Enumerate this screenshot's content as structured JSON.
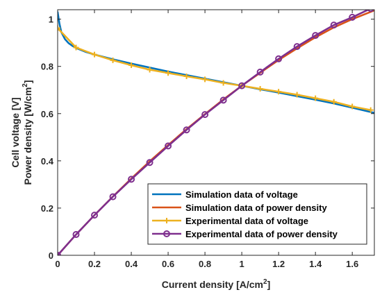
{
  "chart_data": {
    "type": "line",
    "xlabel": "Current density [A/cm",
    "xlabel_sup": "2",
    "xlabel_end": "]",
    "ylabel_line1": "Cell voltage [V]",
    "ylabel_line2": "Power density [W/cm",
    "ylabel_line2_sup": "2",
    "ylabel_line2_end": "]",
    "xlim": [
      0,
      1.72
    ],
    "ylim": [
      0,
      1.04
    ],
    "xticks": [
      0,
      0.2,
      0.4,
      0.6,
      0.8,
      1,
      1.2,
      1.4,
      1.6
    ],
    "xtick_labels": [
      "0",
      "0.2",
      "0.4",
      "0.6",
      "0.8",
      "1",
      "1.2",
      "1.4",
      "1.6"
    ],
    "yticks": [
      0,
      0.2,
      0.4,
      0.6,
      0.8,
      1
    ],
    "ytick_labels": [
      "0",
      "0.2",
      "0.4",
      "0.6",
      "0.8",
      "1"
    ],
    "grid": false,
    "legend_position": "bottom-right",
    "series": [
      {
        "name": "Simulation data of voltage",
        "color": "#0072BD",
        "marker": "none",
        "x": [
          0,
          0.01,
          0.02,
          0.04,
          0.06,
          0.08,
          0.1,
          0.15,
          0.2,
          0.3,
          0.4,
          0.5,
          0.6,
          0.7,
          0.8,
          0.9,
          1.0,
          1.1,
          1.2,
          1.3,
          1.4,
          1.5,
          1.6,
          1.72
        ],
        "y": [
          1.03,
          0.98,
          0.945,
          0.915,
          0.898,
          0.887,
          0.878,
          0.862,
          0.85,
          0.83,
          0.812,
          0.795,
          0.778,
          0.763,
          0.748,
          0.733,
          0.718,
          0.703,
          0.689,
          0.674,
          0.659,
          0.643,
          0.625,
          0.603
        ]
      },
      {
        "name": "Simulation data of power density",
        "color": "#D95319",
        "marker": "none",
        "x": [
          0,
          0.1,
          0.2,
          0.3,
          0.4,
          0.5,
          0.6,
          0.7,
          0.8,
          0.9,
          1.0,
          1.1,
          1.2,
          1.3,
          1.4,
          1.5,
          1.6,
          1.72
        ],
        "y": [
          0,
          0.088,
          0.17,
          0.249,
          0.325,
          0.398,
          0.467,
          0.534,
          0.598,
          0.66,
          0.718,
          0.773,
          0.827,
          0.876,
          0.923,
          0.965,
          1.0,
          1.037
        ]
      },
      {
        "name": "Experimental data of voltage",
        "color": "#EDB120",
        "marker": "plus",
        "x": [
          0,
          0.1,
          0.2,
          0.3,
          0.4,
          0.5,
          0.6,
          0.7,
          0.8,
          0.9,
          1.0,
          1.1,
          1.2,
          1.3,
          1.4,
          1.5,
          1.6,
          1.7
        ],
        "y": [
          0.962,
          0.88,
          0.85,
          0.826,
          0.805,
          0.786,
          0.772,
          0.758,
          0.745,
          0.73,
          0.718,
          0.705,
          0.693,
          0.68,
          0.665,
          0.65,
          0.63,
          0.615
        ]
      },
      {
        "name": "Experimental data of power density",
        "color": "#7E2F8E",
        "marker": "circle",
        "x": [
          0,
          0.1,
          0.2,
          0.3,
          0.4,
          0.5,
          0.6,
          0.7,
          0.8,
          0.9,
          1.0,
          1.1,
          1.2,
          1.3,
          1.4,
          1.5,
          1.6,
          1.7
        ],
        "y": [
          0,
          0.088,
          0.17,
          0.248,
          0.322,
          0.393,
          0.463,
          0.531,
          0.596,
          0.657,
          0.718,
          0.776,
          0.832,
          0.884,
          0.931,
          0.975,
          1.008,
          1.045
        ]
      }
    ]
  }
}
